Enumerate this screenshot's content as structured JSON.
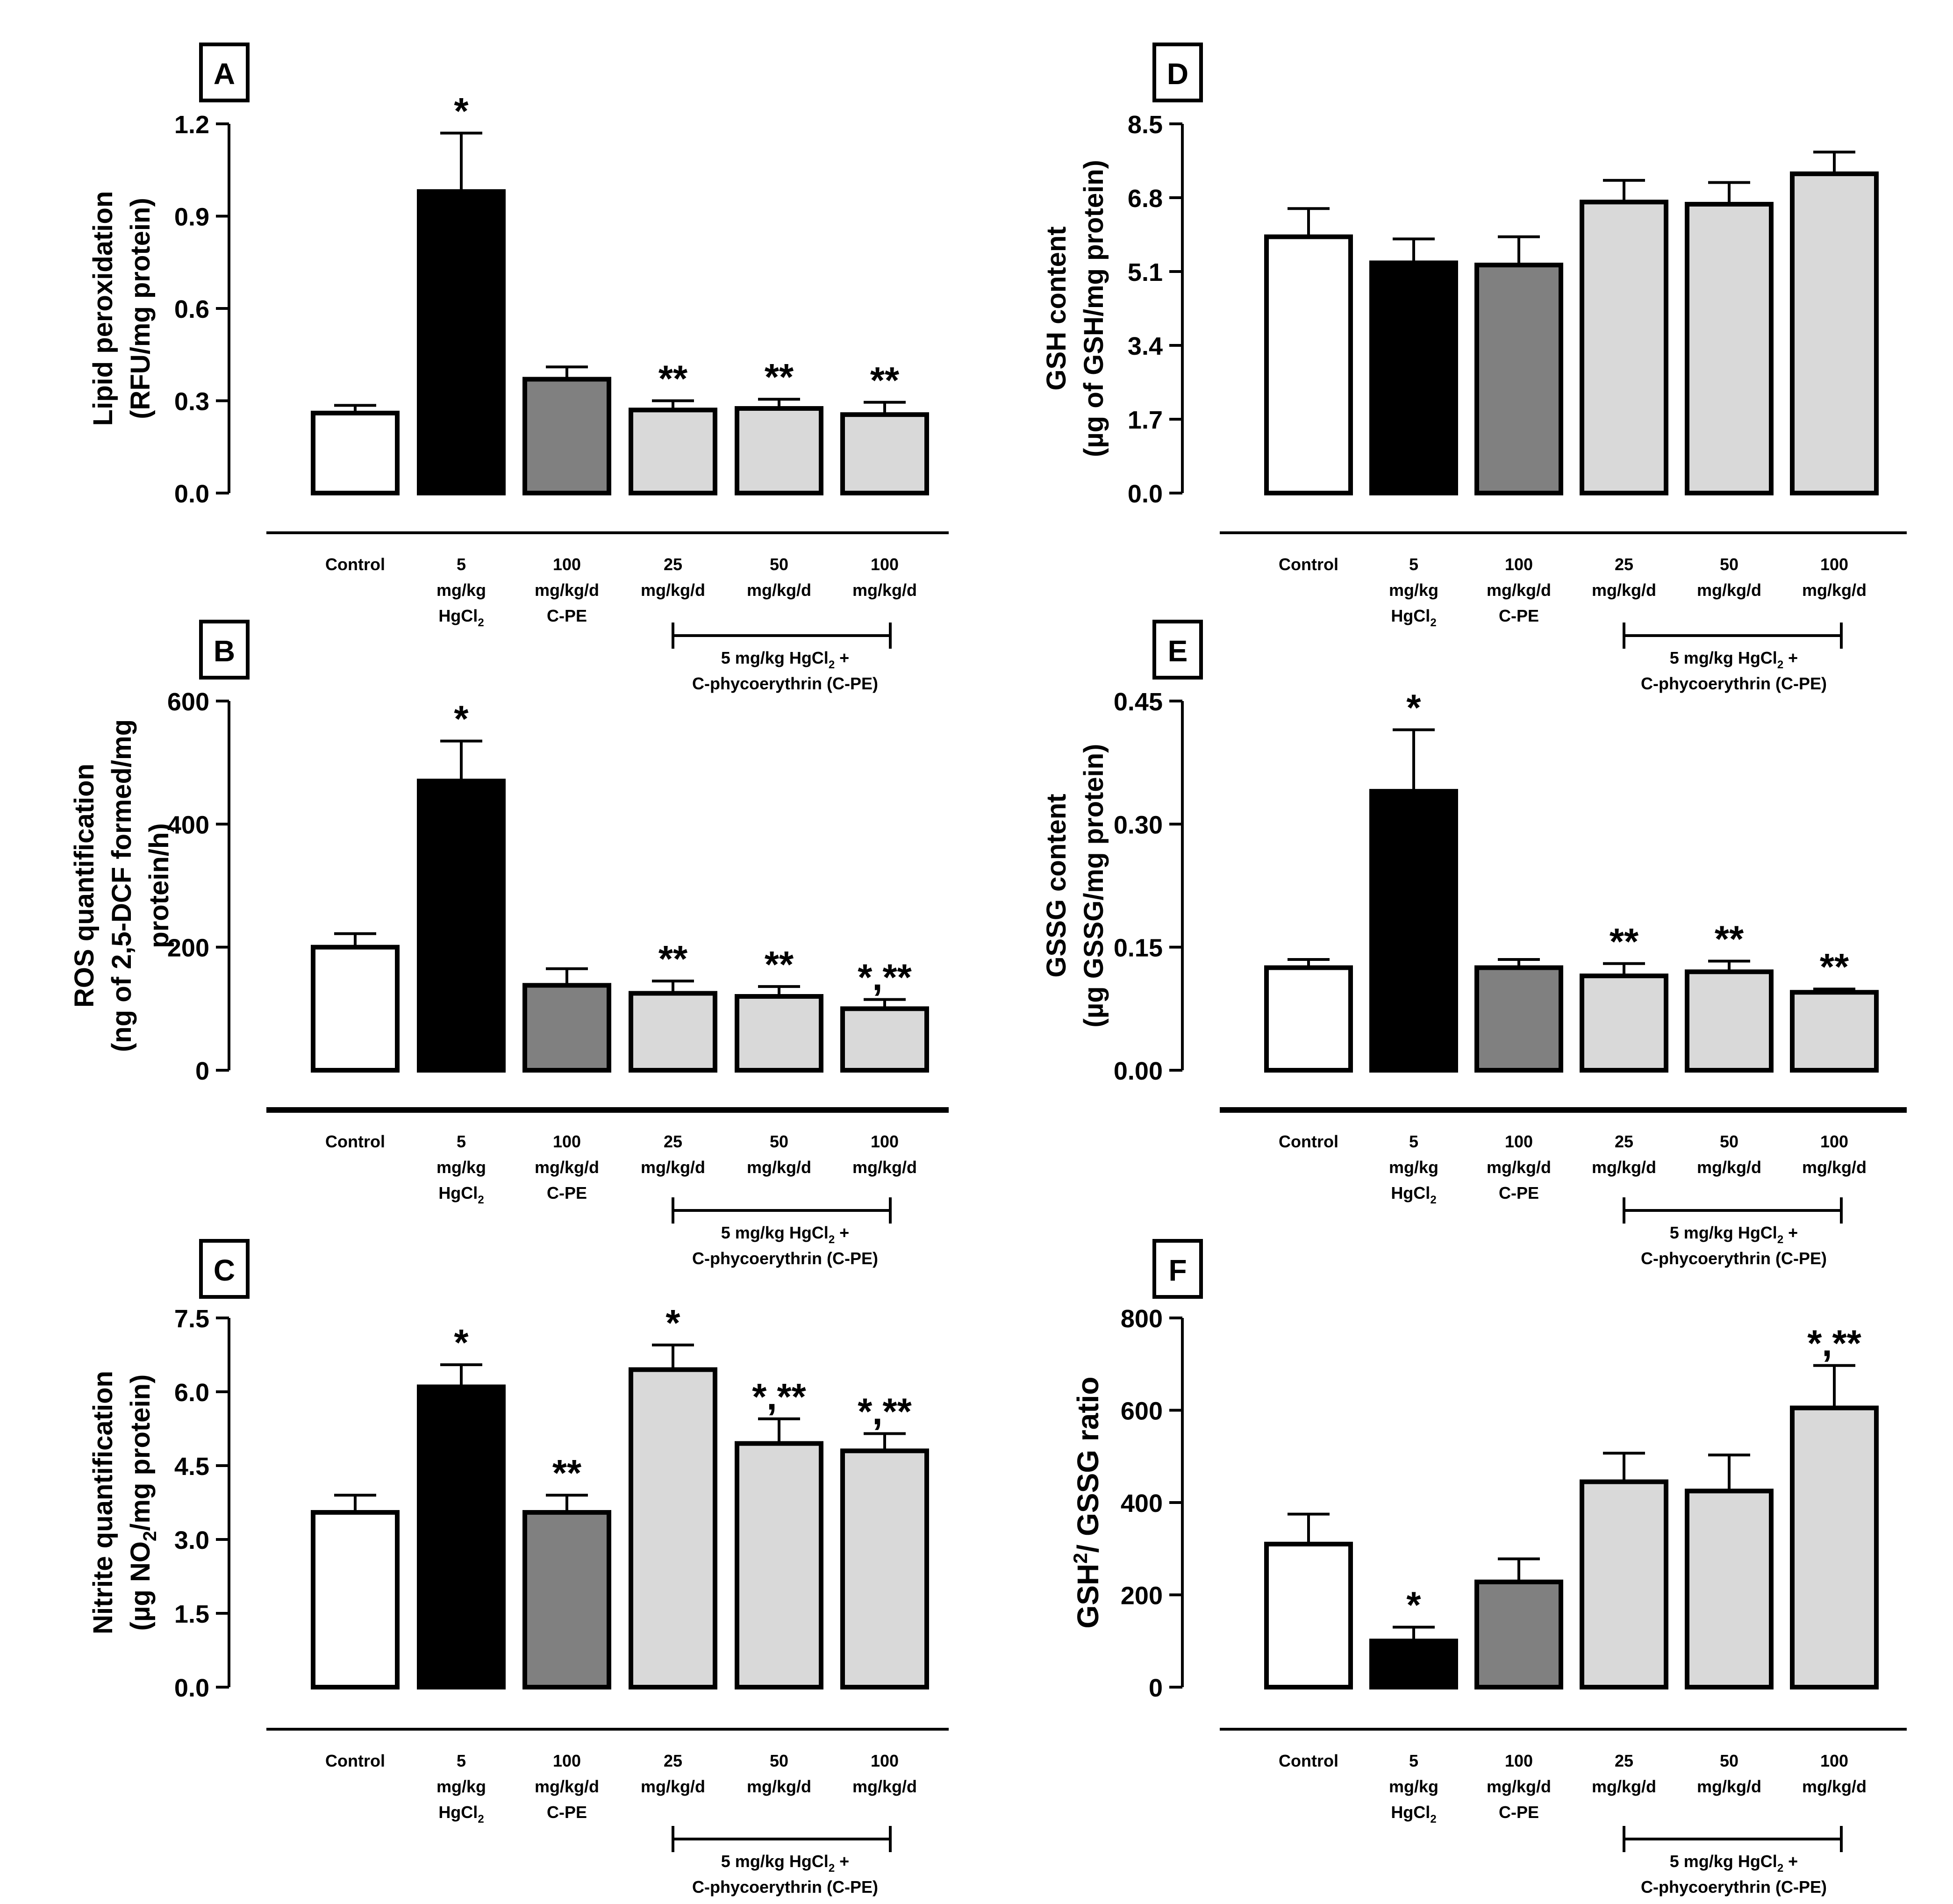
{
  "group_labels": {
    "control": "Control",
    "hg_value": "5",
    "hg_unit": "mg/kg",
    "hg_compound": "HgCl",
    "hg_compound_sub": "2",
    "cpe_value": "100",
    "cpe_unit": "mg/kg/d",
    "cpe_name": "C-PE",
    "combo_values": [
      "25",
      "50",
      "100"
    ],
    "combo_unit": "mg/kg/d",
    "bracket_line1": "5 mg/kg HgCl",
    "bracket_line1_sub": "2",
    "bracket_line1_end": " +",
    "bracket_line2": "C-phycoerythrin (C-PE)"
  },
  "colors": {
    "control": "#ffffff",
    "hg": "#000000",
    "cpe": "#808080",
    "combo": "#d9d9d9",
    "stroke": "#000000"
  },
  "chart_data": [
    {
      "panel": "A",
      "type": "bar",
      "ylabel_line1": "Lipid peroxidation",
      "ylabel_line2": "(RFU/mg protein)",
      "ylim": [
        0,
        1.2
      ],
      "yticks": [
        "0.0",
        "0.3",
        "0.6",
        "0.9",
        "1.2"
      ],
      "values": [
        0.26,
        0.98,
        0.37,
        0.27,
        0.275,
        0.255
      ],
      "errors": [
        0.025,
        0.19,
        0.04,
        0.03,
        0.03,
        0.04
      ],
      "annotations": [
        "",
        "*",
        "",
        "**",
        "**",
        "**"
      ]
    },
    {
      "panel": "B",
      "type": "bar",
      "ylabel_line1": "ROS quantification",
      "ylabel_line2": "(ng of 2,5-DCF formed/mg",
      "ylabel_line3": "protein/h)",
      "ylim": [
        0,
        600
      ],
      "yticks": [
        "0",
        "200",
        "400",
        "600"
      ],
      "values": [
        200,
        470,
        138,
        125,
        120,
        100
      ],
      "errors": [
        22,
        65,
        27,
        20,
        16,
        15
      ],
      "annotations": [
        "",
        "*",
        "",
        "**",
        "**",
        "*,**"
      ]
    },
    {
      "panel": "C",
      "type": "bar",
      "ylabel_line1": "Nitrite quantification",
      "ylabel_line2_pre": "(µg NO",
      "ylabel_line2_sub": "2",
      "ylabel_line2_post": "/mg protein)",
      "ylim": [
        0,
        7.5
      ],
      "yticks": [
        "0.0",
        "1.5",
        "3.0",
        "4.5",
        "6.0",
        "7.5"
      ],
      "values": [
        3.55,
        6.1,
        3.55,
        6.45,
        4.95,
        4.8
      ],
      "errors": [
        0.35,
        0.45,
        0.35,
        0.5,
        0.5,
        0.35
      ],
      "annotations": [
        "",
        "*",
        "**",
        "*",
        "*,**",
        "*,**"
      ]
    },
    {
      "panel": "D",
      "type": "bar",
      "ylabel_line1": "GSH content",
      "ylabel_line2": "(µg of GSH/mg protein)",
      "ylim": [
        0,
        8.5
      ],
      "yticks": [
        "0.0",
        "1.7",
        "3.4",
        "5.1",
        "6.8",
        "8.5"
      ],
      "values": [
        5.9,
        5.3,
        5.25,
        6.7,
        6.65,
        7.35
      ],
      "errors": [
        0.65,
        0.55,
        0.65,
        0.5,
        0.5,
        0.5
      ],
      "annotations": [
        "",
        "",
        "",
        "",
        "",
        ""
      ]
    },
    {
      "panel": "E",
      "type": "bar",
      "ylabel_line1": "GSSG content",
      "ylabel_line2": "(µg GSSG/mg protein)",
      "ylim": [
        0,
        0.45
      ],
      "yticks": [
        "0.00",
        "0.15",
        "0.30",
        "0.45"
      ],
      "values": [
        0.125,
        0.34,
        0.125,
        0.115,
        0.12,
        0.095
      ],
      "errors": [
        0.01,
        0.075,
        0.01,
        0.015,
        0.013,
        0.004
      ],
      "annotations": [
        "",
        "*",
        "",
        "**",
        "**",
        "**"
      ]
    },
    {
      "panel": "F",
      "type": "bar",
      "ylabel_pre": "GSH",
      "ylabel_sup": "2",
      "ylabel_post": "/ GSSG ratio",
      "ylim": [
        0,
        800
      ],
      "yticks": [
        "0",
        "200",
        "400",
        "600",
        "800"
      ],
      "values": [
        310,
        100,
        228,
        445,
        425,
        605
      ],
      "errors": [
        65,
        30,
        50,
        62,
        78,
        92
      ],
      "annotations": [
        "",
        "*",
        "",
        "",
        "",
        "*,**"
      ]
    }
  ]
}
